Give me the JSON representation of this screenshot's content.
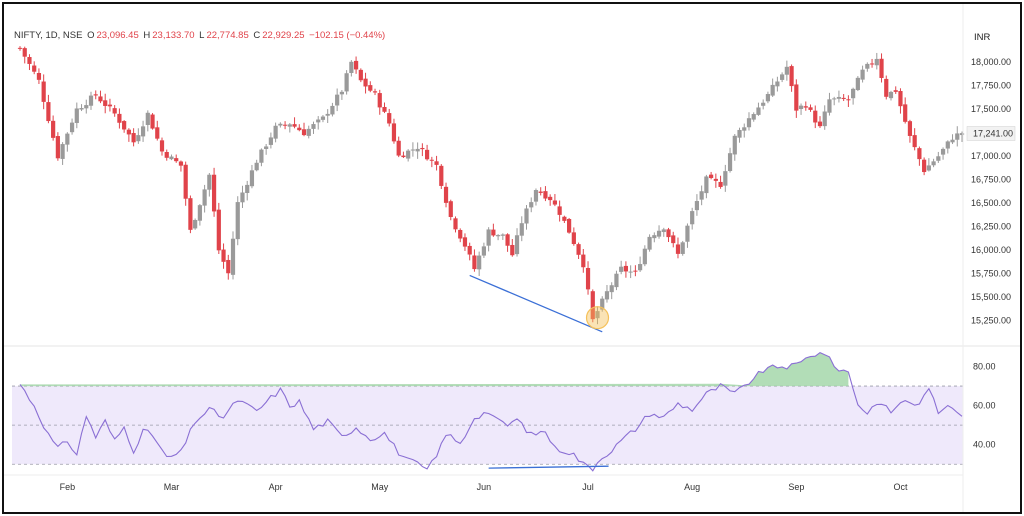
{
  "legend": {
    "symbol": "NIFTY, 1D, NSE",
    "open_label": "O",
    "open": "23,096.45",
    "high_label": "H",
    "high": "23,133.70",
    "low_label": "L",
    "low": "22,774.85",
    "close_label": "C",
    "close": "22,929.25",
    "change": "−102.15 (−0.44%)"
  },
  "currency": "INR",
  "colors": {
    "up": "#9a9a9a",
    "down": "#e0434a",
    "rsi_line": "#8a6fd4",
    "rsi_band": "#efe9fb",
    "overbought_fill": "#9fd5a5",
    "trendline": "#3b6fd6",
    "highlight": "#f5c15a"
  },
  "chart_data": [
    {
      "type": "candlestick",
      "name": "NIFTY",
      "ylim": [
        15000,
        18300
      ],
      "y_ticks": [
        "18,000.00",
        "17,750.00",
        "17,500.00",
        "17,250.00",
        "17,000.00",
        "16,750.00",
        "16,500.00",
        "16,250.00",
        "16,000.00",
        "15,750.00",
        "15,500.00",
        "15,250.00"
      ],
      "y_tick_values": [
        18000,
        17750,
        17500,
        17250,
        17000,
        16750,
        16500,
        16250,
        16000,
        15750,
        15500,
        15250
      ],
      "last_price": "17,241.00",
      "last_price_value": 17241,
      "x_labels": [
        "Feb",
        "Mar",
        "Apr",
        "May",
        "Jun",
        "Jul",
        "Aug",
        "Sep",
        "Oct"
      ],
      "anchors": [
        [
          0,
          18150
        ],
        [
          4,
          17800
        ],
        [
          8,
          17000
        ],
        [
          12,
          17500
        ],
        [
          16,
          17650
        ],
        [
          20,
          17450
        ],
        [
          24,
          17150
        ],
        [
          27,
          17450
        ],
        [
          30,
          17050
        ],
        [
          34,
          16900
        ],
        [
          36,
          16200
        ],
        [
          40,
          16800
        ],
        [
          42,
          16000
        ],
        [
          44,
          15750
        ],
        [
          46,
          16500
        ],
        [
          50,
          16950
        ],
        [
          54,
          17300
        ],
        [
          57,
          17350
        ],
        [
          60,
          17250
        ],
        [
          64,
          17400
        ],
        [
          68,
          17700
        ],
        [
          70,
          18000
        ],
        [
          72,
          17800
        ],
        [
          75,
          17650
        ],
        [
          78,
          17350
        ],
        [
          80,
          17000
        ],
        [
          84,
          17100
        ],
        [
          88,
          16900
        ],
        [
          91,
          16350
        ],
        [
          94,
          16050
        ],
        [
          96,
          15800
        ],
        [
          99,
          16200
        ],
        [
          102,
          16150
        ],
        [
          104,
          15950
        ],
        [
          106,
          16300
        ],
        [
          109,
          16650
        ],
        [
          112,
          16550
        ],
        [
          114,
          16400
        ],
        [
          116,
          16200
        ],
        [
          119,
          15850
        ],
        [
          121,
          15250
        ],
        [
          124,
          15550
        ],
        [
          127,
          15800
        ],
        [
          130,
          15750
        ],
        [
          133,
          16150
        ],
        [
          136,
          16250
        ],
        [
          139,
          15950
        ],
        [
          142,
          16400
        ],
        [
          145,
          16750
        ],
        [
          148,
          16700
        ],
        [
          151,
          17200
        ],
        [
          154,
          17400
        ],
        [
          158,
          17650
        ],
        [
          162,
          17950
        ],
        [
          164,
          17500
        ],
        [
          166,
          17550
        ],
        [
          169,
          17300
        ],
        [
          171,
          17600
        ],
        [
          175,
          17600
        ],
        [
          178,
          17900
        ],
        [
          181,
          18050
        ],
        [
          183,
          17650
        ],
        [
          185,
          17700
        ],
        [
          188,
          17200
        ],
        [
          191,
          16850
        ],
        [
          194,
          17000
        ],
        [
          197,
          17200
        ],
        [
          199,
          17250
        ]
      ],
      "n_candles": 200
    },
    {
      "type": "line",
      "name": "RSI",
      "ylim": [
        25,
        90
      ],
      "y_ticks": [
        "80.00",
        "60.00",
        "40.00"
      ],
      "y_tick_values": [
        80,
        60,
        40
      ],
      "band": [
        30,
        70
      ],
      "mid": 50,
      "anchors": [
        [
          0,
          71
        ],
        [
          3,
          60
        ],
        [
          6,
          45
        ],
        [
          8,
          38
        ],
        [
          10,
          42
        ],
        [
          12,
          35
        ],
        [
          14,
          55
        ],
        [
          16,
          44
        ],
        [
          18,
          52
        ],
        [
          20,
          42
        ],
        [
          22,
          49
        ],
        [
          24,
          37
        ],
        [
          26,
          47
        ],
        [
          28,
          45
        ],
        [
          31,
          33
        ],
        [
          34,
          36
        ],
        [
          37,
          52
        ],
        [
          40,
          58
        ],
        [
          43,
          54
        ],
        [
          46,
          63
        ],
        [
          50,
          57
        ],
        [
          53,
          64
        ],
        [
          55,
          68
        ],
        [
          57,
          60
        ],
        [
          59,
          62
        ],
        [
          62,
          48
        ],
        [
          65,
          52
        ],
        [
          68,
          44
        ],
        [
          71,
          49
        ],
        [
          74,
          43
        ],
        [
          77,
          46
        ],
        [
          80,
          36
        ],
        [
          82,
          32
        ],
        [
          84,
          30
        ],
        [
          86,
          27
        ],
        [
          88,
          34
        ],
        [
          90,
          46
        ],
        [
          93,
          40
        ],
        [
          96,
          54
        ],
        [
          99,
          57
        ],
        [
          101,
          52
        ],
        [
          103,
          50
        ],
        [
          105,
          53
        ],
        [
          108,
          45
        ],
        [
          111,
          47
        ],
        [
          113,
          38
        ],
        [
          115,
          37
        ],
        [
          117,
          35
        ],
        [
          119,
          30
        ],
        [
          121,
          28
        ],
        [
          123,
          34
        ],
        [
          125,
          37
        ],
        [
          127,
          42
        ],
        [
          130,
          48
        ],
        [
          133,
          56
        ],
        [
          136,
          54
        ],
        [
          139,
          61
        ],
        [
          142,
          58
        ],
        [
          145,
          66
        ],
        [
          148,
          70
        ],
        [
          151,
          66
        ],
        [
          154,
          72
        ],
        [
          157,
          78
        ],
        [
          160,
          80
        ],
        [
          163,
          80
        ],
        [
          165,
          82
        ],
        [
          167,
          86
        ],
        [
          170,
          87
        ],
        [
          172,
          80
        ],
        [
          175,
          77
        ],
        [
          177,
          61
        ],
        [
          179,
          56
        ],
        [
          181,
          62
        ],
        [
          184,
          57
        ],
        [
          187,
          63
        ],
        [
          190,
          60
        ],
        [
          192,
          70
        ],
        [
          194,
          55
        ],
        [
          196,
          61
        ],
        [
          199,
          56
        ]
      ],
      "divergence_line_points": [
        [
          99,
          28
        ],
        [
          118,
          29
        ]
      ]
    }
  ]
}
